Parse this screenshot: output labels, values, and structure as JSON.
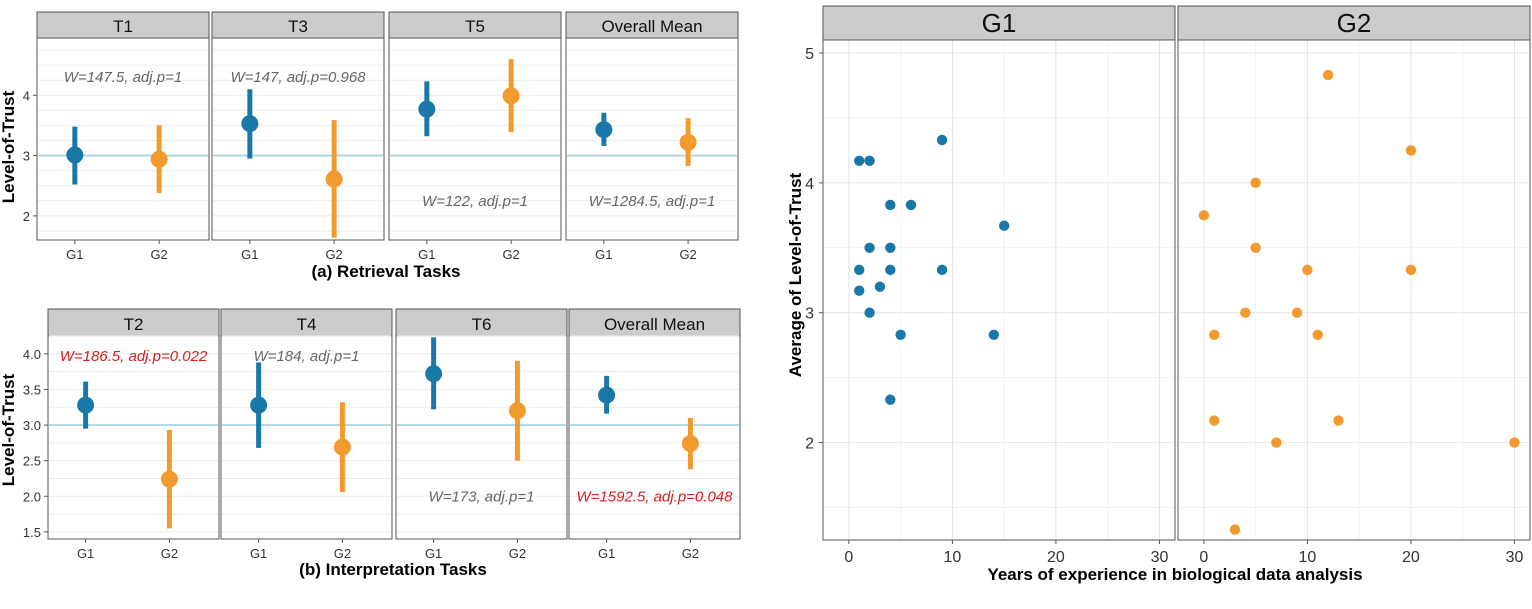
{
  "colors": {
    "g1": "#1a78a8",
    "g2": "#f29a2e",
    "ref": "#9fd0e6",
    "red": "#d42020",
    "annot": "#666666"
  },
  "chart_data": [
    {
      "type": "point-range",
      "id": "retrieval",
      "title": "(a) Retrieval Tasks",
      "ylabel": "Level-of-Trust",
      "categories": [
        "G1",
        "G2"
      ],
      "ylim": [
        1.6,
        4.95
      ],
      "yticks": [
        "2",
        "3",
        "4"
      ],
      "ytick_values": [
        2,
        3,
        4
      ],
      "reference_line": 3,
      "panels": [
        {
          "label": "T1",
          "annotation": "W=147.5, adj.p=1",
          "annotation_red": false,
          "annotation_y": 4.3,
          "points": [
            {
              "group": "G1",
              "mean": 3.01,
              "low": 2.52,
              "high": 3.48
            },
            {
              "group": "G2",
              "mean": 2.94,
              "low": 2.38,
              "high": 3.5
            }
          ]
        },
        {
          "label": "T3",
          "annotation": "W=147, adj.p=0.968",
          "annotation_red": false,
          "annotation_y": 4.3,
          "points": [
            {
              "group": "G1",
              "mean": 3.53,
              "low": 2.95,
              "high": 4.1
            },
            {
              "group": "G2",
              "mean": 2.61,
              "low": 1.64,
              "high": 3.59
            }
          ]
        },
        {
          "label": "T5",
          "annotation": "W=122, adj.p=1",
          "annotation_red": false,
          "annotation_y": 2.25,
          "points": [
            {
              "group": "G1",
              "mean": 3.77,
              "low": 3.32,
              "high": 4.23
            },
            {
              "group": "G2",
              "mean": 3.99,
              "low": 3.39,
              "high": 4.6
            }
          ]
        },
        {
          "label": "Overall Mean",
          "annotation": "W=1284.5, adj.p=1",
          "annotation_red": false,
          "annotation_y": 2.25,
          "points": [
            {
              "group": "G1",
              "mean": 3.43,
              "low": 3.16,
              "high": 3.71
            },
            {
              "group": "G2",
              "mean": 3.22,
              "low": 2.83,
              "high": 3.62
            }
          ]
        }
      ]
    },
    {
      "type": "point-range",
      "id": "interpretation",
      "title": "(b) Interpretation Tasks",
      "ylabel": "Level-of-Trust",
      "categories": [
        "G1",
        "G2"
      ],
      "ylim": [
        1.4,
        4.25
      ],
      "yticks": [
        "1.5",
        "2.0",
        "2.5",
        "3.0",
        "3.5",
        "4.0"
      ],
      "ytick_values": [
        1.5,
        2.0,
        2.5,
        3.0,
        3.5,
        4.0
      ],
      "reference_line": 3,
      "panels": [
        {
          "label": "T2",
          "annotation": "W=186.5, adj.p=0.022",
          "annotation_red": true,
          "annotation_y": 3.97,
          "points": [
            {
              "group": "G1",
              "mean": 3.28,
              "low": 2.95,
              "high": 3.61
            },
            {
              "group": "G2",
              "mean": 2.24,
              "low": 1.55,
              "high": 2.93
            }
          ]
        },
        {
          "label": "T4",
          "annotation": "W=184, adj.p=1",
          "annotation_red": false,
          "annotation_y": 3.97,
          "points": [
            {
              "group": "G1",
              "mean": 3.28,
              "low": 2.68,
              "high": 3.88
            },
            {
              "group": "G2",
              "mean": 2.69,
              "low": 2.06,
              "high": 3.32
            }
          ]
        },
        {
          "label": "T6",
          "annotation": "W=173, adj.p=1",
          "annotation_red": false,
          "annotation_y": 2.0,
          "points": [
            {
              "group": "G1",
              "mean": 3.72,
              "low": 3.22,
              "high": 4.23
            },
            {
              "group": "G2",
              "mean": 3.2,
              "low": 2.5,
              "high": 3.9
            }
          ]
        },
        {
          "label": "Overall Mean",
          "annotation": "W=1592.5, adj.p=0.048",
          "annotation_red": true,
          "annotation_y": 2.0,
          "points": [
            {
              "group": "G1",
              "mean": 3.42,
              "low": 3.16,
              "high": 3.69
            },
            {
              "group": "G2",
              "mean": 2.74,
              "low": 2.38,
              "high": 3.1
            }
          ]
        }
      ]
    },
    {
      "type": "scatter",
      "id": "experience",
      "xlabel": "Years of experience in biological data analysis",
      "ylabel": "Average of Level-of-Trust",
      "xlim": [
        -2.5,
        31.5
      ],
      "ylim": [
        1.25,
        5.1
      ],
      "xticks": [
        "0",
        "10",
        "20",
        "30"
      ],
      "xtick_values": [
        0,
        10,
        20,
        30
      ],
      "yticks": [
        "2",
        "3",
        "4",
        "5"
      ],
      "ytick_values": [
        2,
        3,
        4,
        5
      ],
      "panels": [
        {
          "label": "G1",
          "group": "G1",
          "points": [
            [
              1,
              4.17
            ],
            [
              2,
              4.17
            ],
            [
              9,
              4.33
            ],
            [
              4,
              3.83
            ],
            [
              6,
              3.83
            ],
            [
              15,
              3.67
            ],
            [
              2,
              3.5
            ],
            [
              4,
              3.5
            ],
            [
              1,
              3.33
            ],
            [
              4,
              3.33
            ],
            [
              9,
              3.33
            ],
            [
              3,
              3.2
            ],
            [
              1,
              3.17
            ],
            [
              2,
              3.0
            ],
            [
              5,
              2.83
            ],
            [
              14,
              2.83
            ],
            [
              4,
              2.33
            ]
          ]
        },
        {
          "label": "G2",
          "group": "G2",
          "points": [
            [
              12,
              4.83
            ],
            [
              20,
              4.25
            ],
            [
              5,
              4.0
            ],
            [
              0,
              3.75
            ],
            [
              5,
              3.5
            ],
            [
              10,
              3.33
            ],
            [
              20,
              3.33
            ],
            [
              4,
              3.0
            ],
            [
              9,
              3.0
            ],
            [
              1,
              2.83
            ],
            [
              11,
              2.83
            ],
            [
              1,
              2.17
            ],
            [
              13,
              2.17
            ],
            [
              7,
              2.0
            ],
            [
              30,
              2.0
            ],
            [
              3,
              1.33
            ]
          ]
        }
      ]
    }
  ]
}
